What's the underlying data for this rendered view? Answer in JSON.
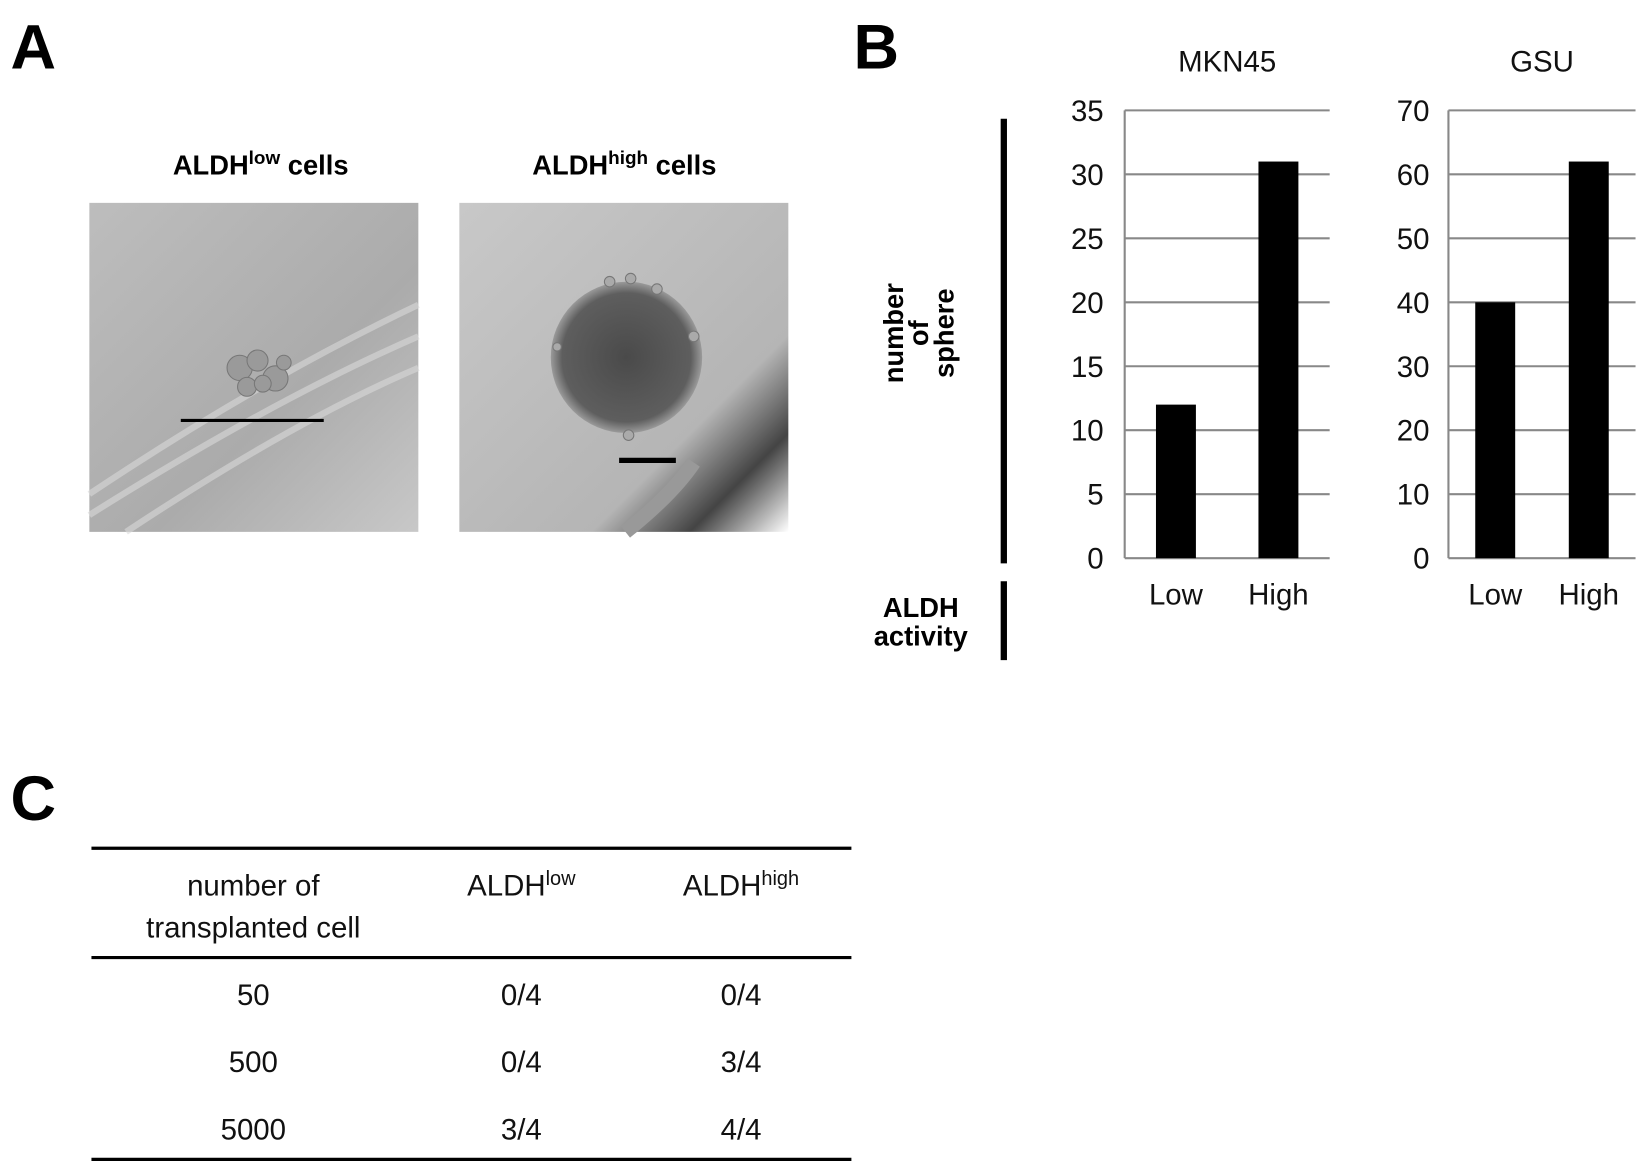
{
  "panel_a": {
    "label": "A",
    "images": [
      {
        "title": "ALDH",
        "sup": "low",
        "suffix": " cells"
      },
      {
        "title": "ALDH",
        "sup": "high",
        "suffix": " cells"
      }
    ]
  },
  "panel_b": {
    "label": "B",
    "y_label": [
      "number",
      "of",
      "sphere"
    ],
    "x_label": [
      "ALDH",
      "activity"
    ]
  },
  "chart_data": [
    {
      "type": "bar",
      "title": "MKN45",
      "categories": [
        "Low",
        "High"
      ],
      "values": [
        12,
        31
      ],
      "color": "#000000",
      "ylim": [
        0,
        35
      ],
      "yticks": [
        0,
        5,
        10,
        15,
        20,
        25,
        30,
        35
      ],
      "grid": true
    },
    {
      "type": "bar",
      "title": "GSU",
      "categories": [
        "Low",
        "High"
      ],
      "values": [
        40,
        62
      ],
      "color": "#000000",
      "ylim": [
        0,
        70
      ],
      "yticks": [
        0,
        10,
        20,
        30,
        40,
        50,
        60,
        70
      ],
      "grid": true
    }
  ],
  "panel_c": {
    "label": "C",
    "table": {
      "header": [
        [
          "number of",
          "transplanted cell"
        ],
        {
          "text": "ALDH",
          "sup": "low"
        },
        {
          "text": "ALDH",
          "sup": "high"
        }
      ],
      "rows": [
        [
          50,
          "0/4",
          "0/4"
        ],
        [
          500,
          "0/4",
          "3/4"
        ],
        [
          5000,
          "3/4",
          "4/4"
        ]
      ]
    }
  }
}
